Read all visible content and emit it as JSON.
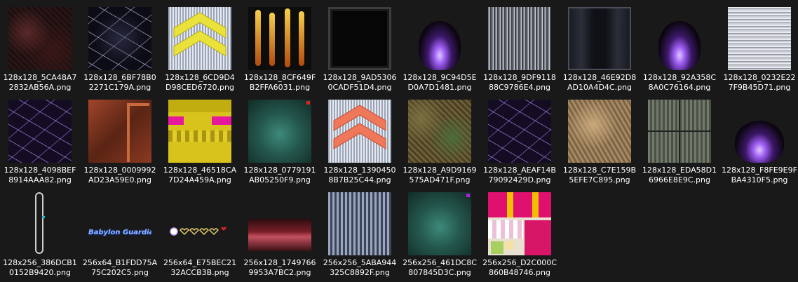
{
  "top_strip_labels": [
    "",
    "",
    "",
    "",
    "",
    "",
    "",
    "",
    "",
    ""
  ],
  "files": [
    {
      "name": "128x128_5CA48A72832AB56A.png",
      "icon": "texture-thumbnail-gore"
    },
    {
      "name": "128x128_6BF78B02271C179A.png",
      "icon": "texture-thumbnail-lightning"
    },
    {
      "name": "128x128_6CD9D4D98CED6720.png",
      "icon": "texture-thumbnail-yellow-chevron"
    },
    {
      "name": "128x128_8CF649FB2FFA6031.png",
      "icon": "texture-thumbnail-flames"
    },
    {
      "name": "128x128_9AD53060CADF51D4.png",
      "icon": "texture-thumbnail-dark-frame"
    },
    {
      "name": "128x128_9C94D5ED0A7D1481.png",
      "icon": "texture-thumbnail-purple-fire"
    },
    {
      "name": "128x128_9DF911888C9786E4.png",
      "icon": "texture-thumbnail-crowd"
    },
    {
      "name": "128x128_46E92D8AD10A4D4C.png",
      "icon": "texture-thumbnail-dark-panel"
    },
    {
      "name": "128x128_92A358C8A0C76164.png",
      "icon": "texture-thumbnail-purple-fire"
    },
    {
      "name": "128x128_0232E227F9B45D71.png",
      "icon": "texture-thumbnail-static"
    },
    {
      "name": "128x128_4098BEF8914AAA82.png",
      "icon": "texture-thumbnail-purple-lightning"
    },
    {
      "name": "128x128_0009992AD23A59E0.png",
      "icon": "texture-thumbnail-rust"
    },
    {
      "name": "128x128_46518CA7D24A459A.png",
      "icon": "texture-thumbnail-yellow-block"
    },
    {
      "name": "128x128_0779191AB05250F9.png",
      "icon": "texture-thumbnail-jade-relief"
    },
    {
      "name": "128x128_13904508B7B25C44.png",
      "icon": "texture-thumbnail-red-chevron"
    },
    {
      "name": "128x128_A9D9169575AD471F.png",
      "icon": "texture-thumbnail-moss"
    },
    {
      "name": "128x128_AEAF14B79092429D.png",
      "icon": "texture-thumbnail-purple-lightning"
    },
    {
      "name": "128x128_C7E159B5EFE7C895.png",
      "icon": "texture-thumbnail-sand"
    },
    {
      "name": "128x128_EDA58D16966E8E9C.png",
      "icon": "texture-thumbnail-stone-grid"
    },
    {
      "name": "128x128_F8FE9E9FBA4310F5.png",
      "icon": "texture-thumbnail-purple-fire"
    },
    {
      "name": "128x256_386DCB10152B9420.png",
      "icon": "texture-thumbnail-capsule"
    },
    {
      "name": "256x64_B1FDD75A75C202C5.png",
      "icon": "texture-thumbnail-babylon-logo",
      "logo_text": "Babylon Guardian"
    },
    {
      "name": "256x64_E75BEC2132ACCB3B.png",
      "icon": "texture-thumbnail-hearts"
    },
    {
      "name": "256x128_17497669953A7BC2.png",
      "icon": "texture-thumbnail-red-sky"
    },
    {
      "name": "256x256_5ABA944325C8892F.png",
      "icon": "texture-thumbnail-blue-ruins"
    },
    {
      "name": "256x256_461DC8C807845D3C.png",
      "icon": "texture-thumbnail-jade-relief"
    },
    {
      "name": "256x256_D2C000C860B48746.png",
      "icon": "texture-thumbnail-pink-character"
    }
  ]
}
